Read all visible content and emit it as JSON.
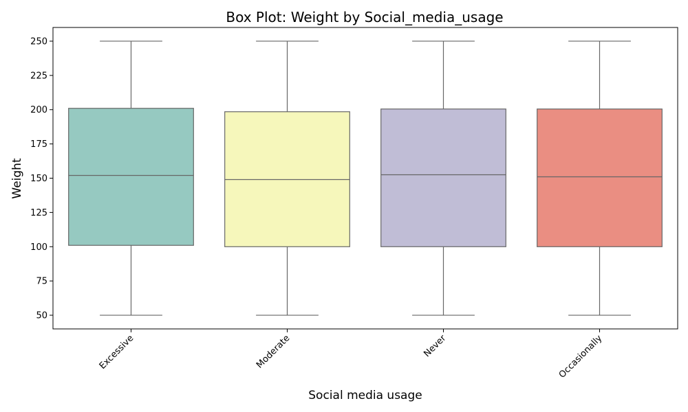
{
  "chart_data": {
    "type": "box",
    "title": "Box Plot: Weight by Social_media_usage",
    "xlabel": "Social media usage",
    "ylabel": "Weight",
    "ylim": [
      40,
      260
    ],
    "yticks": [
      50,
      75,
      100,
      125,
      150,
      175,
      200,
      225,
      250
    ],
    "categories": [
      "Excessive",
      "Moderate",
      "Never",
      "Occasionally"
    ],
    "colors": [
      "#96c9c1",
      "#f6f7bb",
      "#c0bdd6",
      "#ea8e82"
    ],
    "series": [
      {
        "category": "Excessive",
        "min": 50,
        "q1": 101,
        "median": 152,
        "q3": 201,
        "max": 250
      },
      {
        "category": "Moderate",
        "min": 50,
        "q1": 100,
        "median": 149,
        "q3": 198.5,
        "max": 250
      },
      {
        "category": "Never",
        "min": 50,
        "q1": 100,
        "median": 152.5,
        "q3": 200.5,
        "max": 250
      },
      {
        "category": "Occasionally",
        "min": 50,
        "q1": 100,
        "median": 151,
        "q3": 200.5,
        "max": 250
      }
    ],
    "grid": false,
    "legend": "none",
    "xtick_rotation": 45
  }
}
